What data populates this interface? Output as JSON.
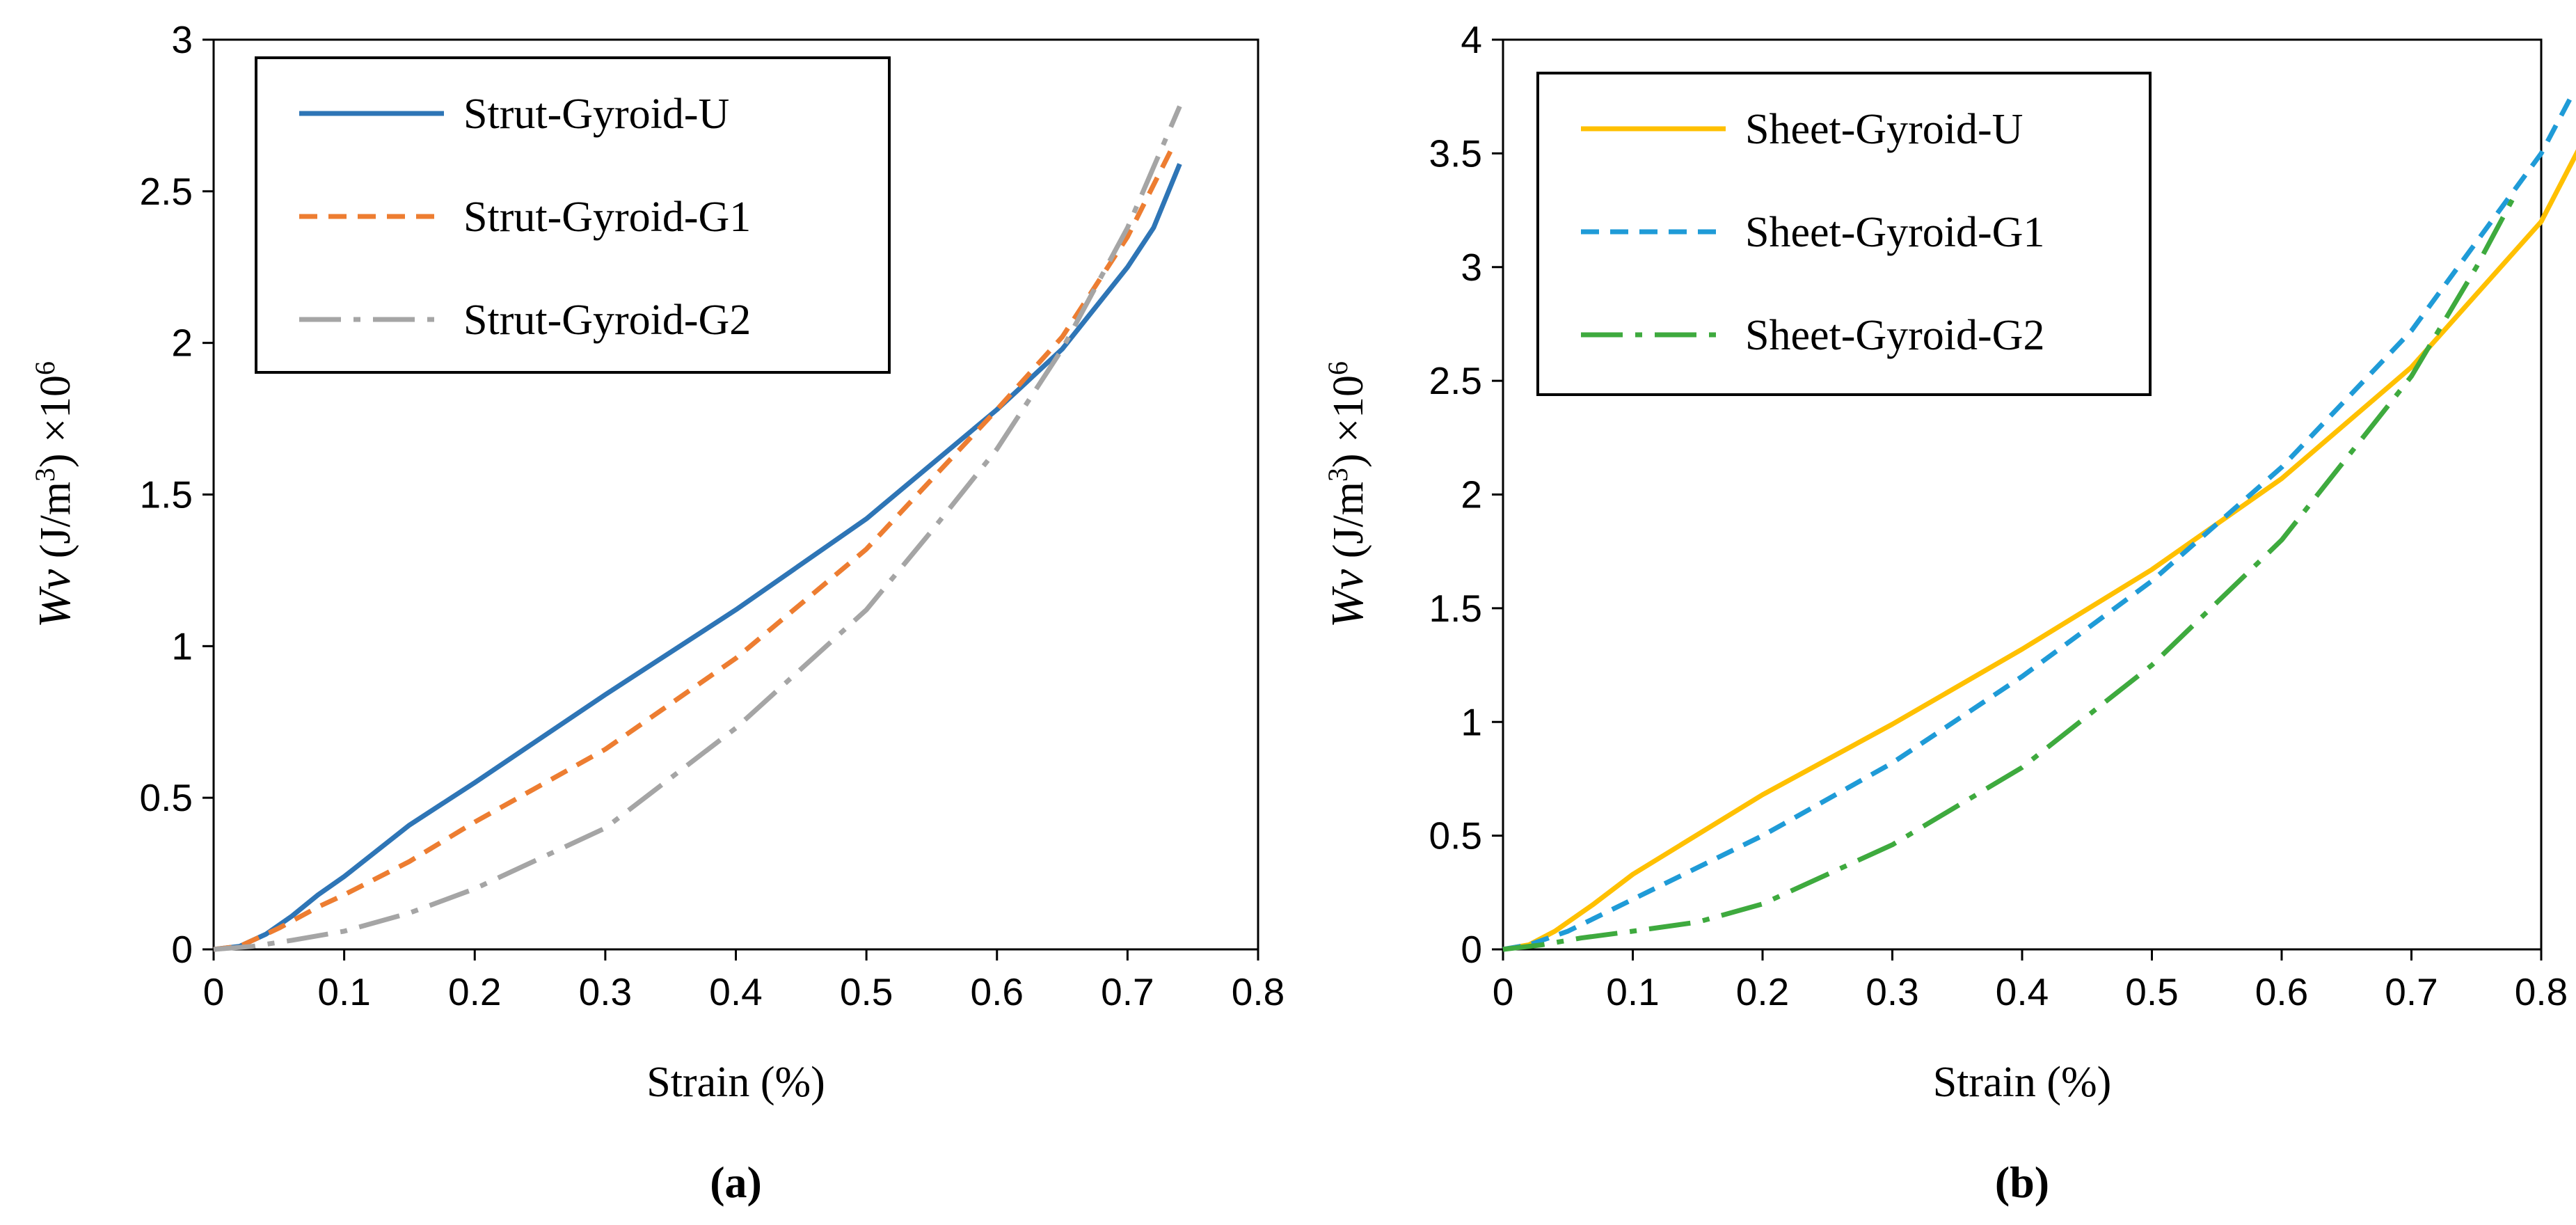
{
  "chart_data": [
    {
      "type": "line",
      "panel_label": "(a)",
      "xlabel": "Strain (%)",
      "ylabel": {
        "symbol": "Wv",
        "unit_pre": " (J/m",
        "unit_sup": "3",
        "unit_post": ") ×10",
        "exp": "6"
      },
      "xlim": [
        0,
        0.8
      ],
      "ylim": [
        0,
        3
      ],
      "xticks": [
        "0",
        "0.1",
        "0.2",
        "0.3",
        "0.4",
        "0.5",
        "0.6",
        "0.7",
        "0.8"
      ],
      "yticks": [
        "0",
        "0.5",
        "1",
        "1.5",
        "2",
        "2.5",
        "3"
      ],
      "legend_position": "top-left",
      "series": [
        {
          "name": "Strut-Gyroid-U",
          "color": "#2E75B6",
          "style": "solid",
          "x": [
            0,
            0.02,
            0.04,
            0.06,
            0.08,
            0.1,
            0.15,
            0.2,
            0.3,
            0.4,
            0.5,
            0.6,
            0.65,
            0.7,
            0.72,
            0.74
          ],
          "y": [
            0,
            0.01,
            0.05,
            0.11,
            0.18,
            0.24,
            0.41,
            0.55,
            0.84,
            1.12,
            1.42,
            1.78,
            1.98,
            2.25,
            2.38,
            2.59
          ]
        },
        {
          "name": "Strut-Gyroid-G1",
          "color": "#ED7D31",
          "style": "dash",
          "x": [
            0,
            0.02,
            0.05,
            0.08,
            0.1,
            0.15,
            0.2,
            0.3,
            0.4,
            0.5,
            0.6,
            0.65,
            0.7,
            0.735
          ],
          "y": [
            0,
            0.01,
            0.07,
            0.14,
            0.18,
            0.29,
            0.42,
            0.66,
            0.96,
            1.32,
            1.78,
            2.02,
            2.35,
            2.65
          ]
        },
        {
          "name": "Strut-Gyroid-G2",
          "color": "#A5A5A5",
          "style": "dashdot",
          "x": [
            0,
            0.03,
            0.06,
            0.1,
            0.15,
            0.2,
            0.3,
            0.4,
            0.5,
            0.55,
            0.6,
            0.65,
            0.7,
            0.74
          ],
          "y": [
            0,
            0.01,
            0.03,
            0.06,
            0.12,
            0.2,
            0.4,
            0.73,
            1.12,
            1.38,
            1.65,
            1.98,
            2.38,
            2.78
          ]
        }
      ]
    },
    {
      "type": "line",
      "panel_label": "(b)",
      "xlabel": "Strain (%)",
      "ylabel": {
        "symbol": "Wv",
        "unit_pre": " (J/m",
        "unit_sup": "3",
        "unit_post": ")  ×10",
        "exp": "6"
      },
      "xlim": [
        0,
        0.8
      ],
      "ylim": [
        0,
        4
      ],
      "xticks": [
        "0",
        "0.1",
        "0.2",
        "0.3",
        "0.4",
        "0.5",
        "0.6",
        "0.7",
        "0.8"
      ],
      "yticks": [
        "0",
        "0.5",
        "1",
        "1.5",
        "2",
        "2.5",
        "3",
        "3.5",
        "4"
      ],
      "legend_position": "top-left",
      "series": [
        {
          "name": "Sheet-Gyroid-U",
          "color": "#FFC000",
          "style": "solid",
          "x": [
            0,
            0.02,
            0.04,
            0.07,
            0.1,
            0.2,
            0.3,
            0.4,
            0.5,
            0.6,
            0.7,
            0.8,
            0.83
          ],
          "y": [
            0,
            0.02,
            0.08,
            0.2,
            0.33,
            0.68,
            0.99,
            1.32,
            1.67,
            2.07,
            2.56,
            3.2,
            3.53
          ]
        },
        {
          "name": "Sheet-Gyroid-G1",
          "color": "#1F9BD7",
          "style": "dash",
          "x": [
            0,
            0.02,
            0.05,
            0.1,
            0.2,
            0.3,
            0.4,
            0.5,
            0.6,
            0.7,
            0.8,
            0.825
          ],
          "y": [
            0,
            0.02,
            0.08,
            0.22,
            0.5,
            0.82,
            1.2,
            1.62,
            2.12,
            2.72,
            3.5,
            3.77
          ]
        },
        {
          "name": "Sheet-Gyroid-G2",
          "color": "#3EAA3E",
          "style": "dashdot",
          "x": [
            0,
            0.03,
            0.06,
            0.1,
            0.15,
            0.2,
            0.3,
            0.4,
            0.5,
            0.6,
            0.7,
            0.75,
            0.78
          ],
          "y": [
            0,
            0.02,
            0.05,
            0.08,
            0.12,
            0.2,
            0.46,
            0.8,
            1.25,
            1.8,
            2.52,
            3.0,
            3.32
          ]
        }
      ]
    }
  ]
}
